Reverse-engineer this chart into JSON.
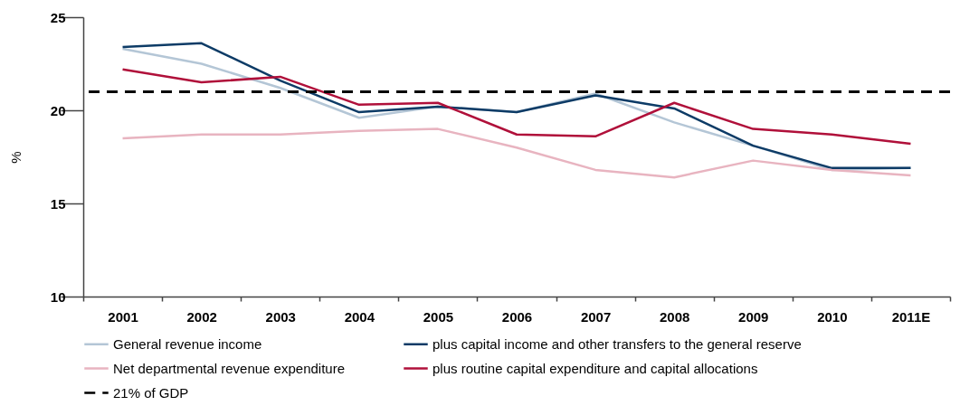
{
  "chart_data": {
    "type": "line",
    "ylabel": "%",
    "categories": [
      "2001",
      "2002",
      "2003",
      "2004",
      "2005",
      "2006",
      "2007",
      "2008",
      "2009",
      "2010",
      "2011E"
    ],
    "series": [
      {
        "name": "General revenue income",
        "color": "#b4c6d6",
        "values": [
          23.3,
          22.5,
          21.2,
          19.6,
          20.2,
          19.9,
          20.9,
          19.35,
          18.1,
          16.8,
          16.9
        ]
      },
      {
        "name": "plus capital income and other transfers to the general reserve",
        "color": "#0d3b66",
        "values": [
          23.4,
          23.6,
          21.6,
          19.9,
          20.2,
          19.9,
          20.8,
          20.1,
          18.1,
          16.9,
          16.9
        ]
      },
      {
        "name": "Net departmental revenue expenditure",
        "color": "#e8b4c0",
        "values": [
          18.5,
          18.7,
          18.7,
          18.9,
          19.0,
          18.0,
          16.8,
          16.4,
          17.3,
          16.8,
          16.5
        ]
      },
      {
        "name": "plus routine capital expenditure and capital allocations",
        "color": "#b0103a",
        "values": [
          22.2,
          21.5,
          21.8,
          20.3,
          20.4,
          18.7,
          18.6,
          20.4,
          19.0,
          18.7,
          18.2
        ]
      }
    ],
    "ref_lines": [
      {
        "axis": "y",
        "value": 21,
        "label": "21% of GDP",
        "color": "#000000",
        "line_style": "dashed"
      }
    ],
    "ylim": [
      10,
      25
    ],
    "yticks": [
      10,
      15,
      20,
      25
    ],
    "grid": false,
    "legend": "bottom"
  }
}
